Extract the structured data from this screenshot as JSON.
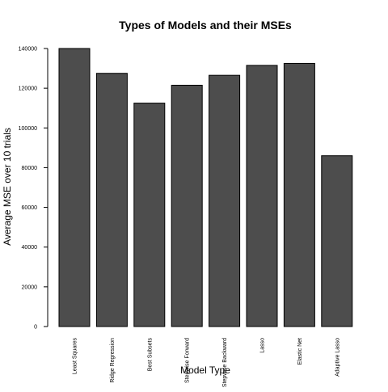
{
  "chart_data": {
    "type": "bar",
    "title": "Types of Models and their MSEs",
    "xlabel": "Model Type",
    "ylabel": "Average MSE over 10 trials",
    "categories": [
      "Least Squares",
      "Ridge Regression",
      "Best Subsets",
      "Stepwise Forward",
      "Stepwise Backward",
      "Lasso",
      "Elastic Net",
      "Adaptive Lasso"
    ],
    "values": [
      140000,
      127500,
      112500,
      121500,
      126500,
      131500,
      132500,
      86000
    ],
    "ylim": [
      0,
      140000
    ],
    "yticks": [
      0,
      20000,
      40000,
      60000,
      80000,
      100000,
      120000,
      140000
    ],
    "ytick_labels": [
      "0",
      "20000",
      "40000",
      "60000",
      "80000",
      "100000",
      "120000",
      "140000"
    ],
    "bar_color": "#4d4d4d",
    "grid": false
  }
}
